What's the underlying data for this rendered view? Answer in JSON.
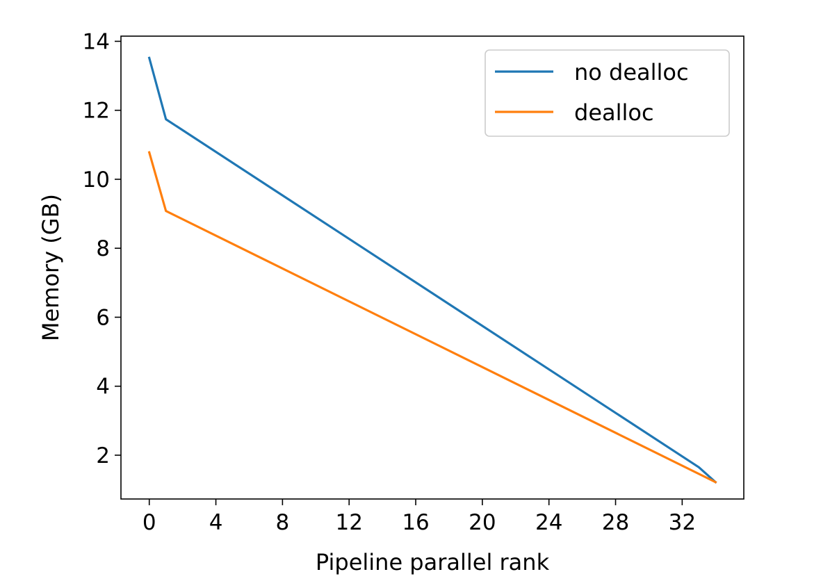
{
  "chart_data": {
    "type": "line",
    "xlabel": "Pipeline parallel rank",
    "ylabel": "Memory (GB)",
    "xlim": [
      -1.7,
      35.7
    ],
    "ylim": [
      0.73,
      14.15
    ],
    "xticks": [
      0,
      4,
      8,
      12,
      16,
      20,
      24,
      28,
      32
    ],
    "yticks": [
      2,
      4,
      6,
      8,
      10,
      12,
      14
    ],
    "grid": false,
    "legend": {
      "placement": "top-right"
    },
    "series": [
      {
        "name": "no dealloc",
        "color": "#1f77b4",
        "x": [
          0,
          1,
          33,
          34
        ],
        "y": [
          13.52,
          11.74,
          1.65,
          1.22
        ]
      },
      {
        "name": "dealloc",
        "color": "#ff7f0e",
        "x": [
          0,
          1,
          34
        ],
        "y": [
          10.78,
          9.08,
          1.22
        ]
      }
    ]
  }
}
